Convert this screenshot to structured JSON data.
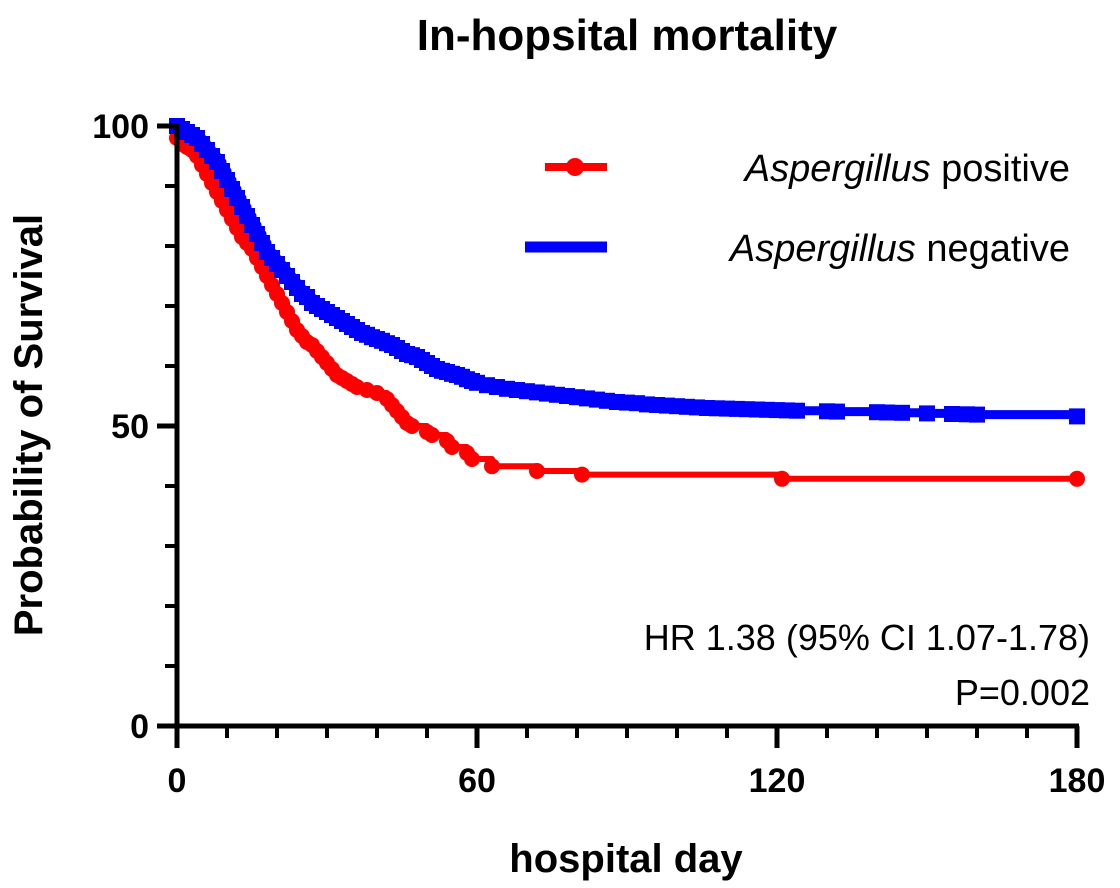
{
  "chart_data": {
    "type": "line",
    "subtype": "kaplan-meier",
    "title": "In-hopsital mortality",
    "xlabel": "hospital day",
    "ylabel": "Probability of Survival",
    "xlim": [
      0,
      180
    ],
    "ylim": [
      0,
      100
    ],
    "xticks": [
      0,
      60,
      120,
      180
    ],
    "yticks": [
      0,
      50,
      100
    ],
    "x_minor_step": 10,
    "y_minor_step": 10,
    "legend_position": "top-right",
    "series": [
      {
        "name_italic": "Aspergillus",
        "name_rest": "positive",
        "color": "#ff0000",
        "marker": "circle",
        "x": [
          0,
          1,
          2,
          3,
          4,
          5,
          6,
          7,
          8,
          9,
          10,
          11,
          12,
          13,
          14,
          15,
          16,
          17,
          18,
          19,
          20,
          21,
          22,
          23,
          24,
          25,
          26,
          27,
          28,
          29,
          30,
          31,
          32,
          33,
          34,
          35,
          36,
          38,
          40,
          42,
          43,
          44,
          45,
          46,
          47,
          50,
          51,
          54,
          55,
          58,
          59,
          63,
          72,
          81,
          121,
          180
        ],
        "y": [
          98,
          97,
          96.5,
          96,
          95,
          93.5,
          92,
          90.5,
          89,
          87.5,
          86,
          84.5,
          83,
          81.5,
          80.5,
          79.5,
          78,
          76.5,
          75,
          73.5,
          72,
          70.5,
          69,
          67.5,
          66,
          65,
          64,
          63.5,
          62.5,
          61.5,
          60.5,
          59.5,
          58.5,
          58,
          57.5,
          57,
          56.5,
          56,
          55.5,
          54.5,
          53.5,
          52.5,
          51.5,
          50.5,
          50,
          49,
          48.5,
          47.5,
          46.5,
          45.5,
          44.5,
          43.3,
          42.5,
          41.9,
          41.2,
          41.2
        ]
      },
      {
        "name_italic": "Aspergillus",
        "name_rest": "negative",
        "color": "#0000ff",
        "marker": "square",
        "x": [
          0,
          1,
          2,
          3,
          4,
          5,
          6,
          7,
          8,
          9,
          10,
          11,
          12,
          13,
          14,
          15,
          16,
          17,
          18,
          19,
          20,
          21,
          22,
          23,
          24,
          25,
          26,
          27,
          28,
          29,
          30,
          31,
          32,
          33,
          34,
          35,
          36,
          37,
          38,
          39,
          40,
          41,
          42,
          43,
          44,
          45,
          46,
          47,
          48,
          49,
          50,
          51,
          52,
          53,
          54,
          55,
          56,
          57,
          58,
          59,
          60,
          62,
          64,
          66,
          68,
          70,
          72,
          74,
          76,
          78,
          80,
          82,
          84,
          86,
          88,
          90,
          92,
          94,
          96,
          98,
          100,
          102,
          104,
          106,
          108,
          110,
          112,
          114,
          116,
          118,
          120,
          122,
          124,
          130,
          132,
          140,
          142,
          145,
          150,
          155,
          158,
          160,
          180
        ],
        "y": [
          100,
          99.5,
          99,
          98.5,
          98,
          97,
          96,
          95,
          94,
          92.5,
          91,
          89.5,
          88,
          86.5,
          85,
          83.5,
          82,
          80.5,
          79,
          78,
          77,
          76,
          75,
          74,
          73,
          72,
          71.5,
          70.5,
          70,
          69.5,
          69,
          68.5,
          68,
          67.5,
          67,
          66.5,
          66,
          65.5,
          65.2,
          64.8,
          64.5,
          64.2,
          63.8,
          63.5,
          63,
          62.5,
          62,
          61.8,
          61.5,
          61,
          60.5,
          60,
          59.5,
          59.2,
          59,
          58.7,
          58.5,
          58.2,
          57.8,
          57.5,
          57.2,
          56.8,
          56.5,
          56.2,
          56,
          55.8,
          55.6,
          55.4,
          55.2,
          55,
          54.8,
          54.6,
          54.4,
          54.2,
          54,
          53.9,
          53.8,
          53.6,
          53.5,
          53.4,
          53.3,
          53.2,
          53.1,
          53,
          52.95,
          52.9,
          52.85,
          52.8,
          52.75,
          52.7,
          52.65,
          52.6,
          52.55,
          52.45,
          52.4,
          52.3,
          52.25,
          52.2,
          52.1,
          52,
          51.95,
          51.9,
          51.6
        ]
      }
    ],
    "annotations": [
      "HR 1.38 (95% CI 1.07-1.78)",
      "P=0.002"
    ]
  }
}
